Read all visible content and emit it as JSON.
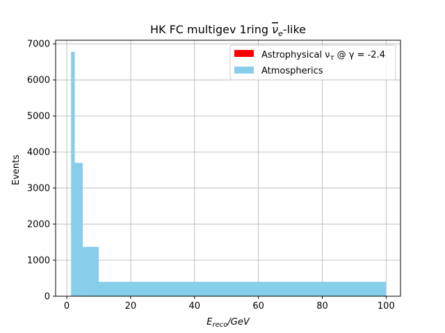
{
  "chart_data": {
    "type": "bar",
    "title_prefix": "HK FC multigev 1ring ",
    "title_nu": "ν",
    "title_sub": "e",
    "title_suffix": "-like",
    "xlabel_main": "E",
    "xlabel_sub": "reco",
    "xlabel_unit": "/GeV",
    "ylabel": "Events",
    "xlim": [
      -3.5,
      104.5
    ],
    "ylim": [
      0,
      7100
    ],
    "xticks": [
      0,
      20,
      40,
      60,
      80,
      100
    ],
    "yticks": [
      0,
      1000,
      2000,
      3000,
      4000,
      5000,
      6000,
      7000
    ],
    "grid": true,
    "legend_position": "top-right",
    "series": [
      {
        "name": "Astrophysical ν",
        "name_sub": "τ",
        "name_suffix": " @ γ = -2.4",
        "color": "#ff0000",
        "bins": []
      },
      {
        "name": "Atmospherics",
        "color": "#87ceeb",
        "bins": [
          {
            "x0": 1.33,
            "x1": 2.5,
            "value": 6780
          },
          {
            "x0": 2.5,
            "x1": 5,
            "value": 3700
          },
          {
            "x0": 5,
            "x1": 10,
            "value": 1370
          },
          {
            "x0": 10,
            "x1": 100,
            "value": 400
          }
        ]
      }
    ]
  }
}
